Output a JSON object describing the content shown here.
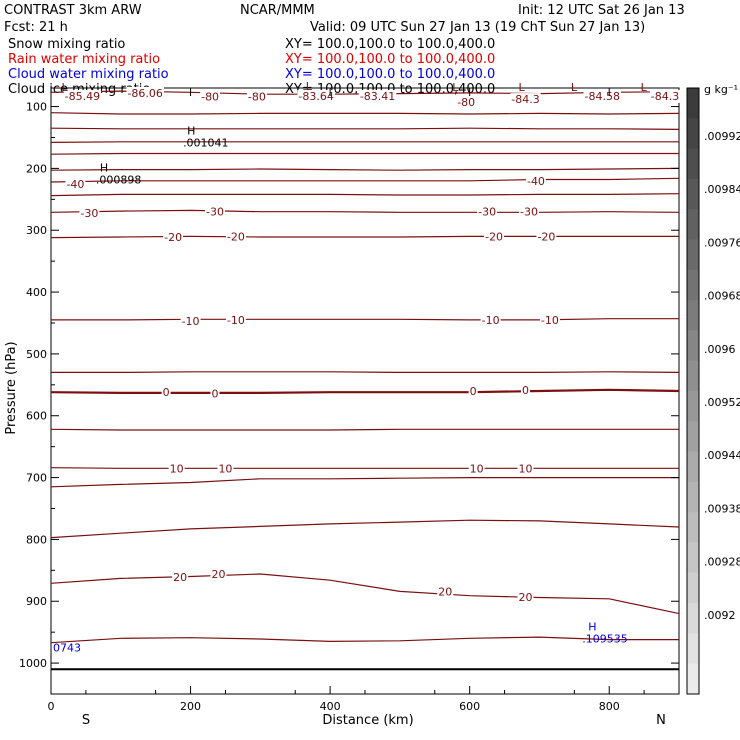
{
  "header": {
    "left1": "CONTRAST  3km ARW",
    "left2": "Fcst:    21 h",
    "center": "NCAR/MMM",
    "init": "Init: 12 UTC Sat 26 Jan 13",
    "valid": "Valid: 09 UTC Sun 27 Jan 13 (19 ChT Sun 27 Jan 13)"
  },
  "fields": [
    {
      "name": "Snow mixing ratio",
      "xy": "XY= 100.0,100.0 to 100.0,400.0",
      "color": "#000000"
    },
    {
      "name": "Rain water mixing ratio",
      "xy": "XY= 100.0,100.0 to 100.0,400.0",
      "color": "#e00000"
    },
    {
      "name": "Cloud water mixing ratio",
      "xy": "XY= 100.0,100.0 to 100.0,400.0",
      "color": "#0000dd"
    },
    {
      "name": "Cloud ice mixing ratio",
      "xy": "XY= 100.0,100.0 to 100.0,400.0",
      "color": "#000000"
    }
  ],
  "chart_data": {
    "type": "contour",
    "xlabel": "Distance (km)",
    "ylabel": "Pressure (hPa)",
    "xlim": [
      0,
      900
    ],
    "ylim": [
      1050,
      70
    ],
    "x_ticks": [
      0,
      200,
      400,
      600,
      800
    ],
    "y_ticks": [
      100,
      200,
      300,
      400,
      500,
      600,
      700,
      800,
      900,
      1000
    ],
    "x_end_labels": {
      "left": "S",
      "right": "N"
    },
    "contour_color": "#7a1010",
    "contours": [
      {
        "level": "-80",
        "p": [
          77,
          75,
          77,
          80,
          80,
          79,
          78,
          79,
          77,
          76
        ]
      },
      {
        "level": "",
        "p": [
          110,
          112,
          112,
          111,
          111,
          111,
          112,
          111,
          112,
          111
        ]
      },
      {
        "level": "",
        "p": [
          135,
          136,
          136,
          136,
          136,
          136,
          135,
          136,
          136,
          137
        ]
      },
      {
        "level": "",
        "p": [
          158,
          157,
          157,
          157,
          157,
          157,
          157,
          157,
          157,
          157
        ]
      },
      {
        "level": "",
        "p": [
          177,
          176,
          176,
          176,
          176,
          176,
          176,
          176,
          176,
          176
        ]
      },
      {
        "level": "",
        "p": [
          203,
          202,
          202,
          201,
          202,
          203,
          202,
          202,
          201,
          200
        ]
      },
      {
        "level": "-40",
        "p": [
          222,
          220,
          220,
          220,
          220,
          220,
          220,
          218,
          218,
          216
        ]
      },
      {
        "level": "",
        "p": [
          244,
          242,
          242,
          242,
          242,
          243,
          243,
          242,
          242,
          241
        ]
      },
      {
        "level": "-30",
        "p": [
          271,
          269,
          268,
          270,
          270,
          271,
          271,
          271,
          270,
          271
        ]
      },
      {
        "level": "-20",
        "p": [
          312,
          311,
          310,
          311,
          311,
          311,
          310,
          310,
          310,
          310
        ]
      },
      {
        "level": "-10",
        "p": [
          445,
          445,
          444,
          444,
          444,
          444,
          445,
          445,
          443,
          443
        ]
      },
      {
        "level": "",
        "p": [
          530,
          530,
          529,
          529,
          529,
          530,
          530,
          530,
          529,
          530
        ]
      },
      {
        "level": "0",
        "p": [
          562,
          563,
          563,
          563,
          562,
          562,
          562,
          560,
          558,
          560
        ]
      },
      {
        "level": "",
        "p": [
          622,
          623,
          623,
          623,
          623,
          622,
          622,
          622,
          622,
          622
        ]
      },
      {
        "level": "10",
        "p": [
          684,
          685,
          685,
          685,
          685,
          685,
          685,
          685,
          685,
          685
        ]
      },
      {
        "level": "",
        "p": [
          715,
          711,
          708,
          702,
          702,
          701,
          700,
          700,
          700,
          700
        ]
      },
      {
        "level": "",
        "p": [
          797,
          790,
          783,
          779,
          775,
          772,
          769,
          770,
          775,
          780
        ]
      },
      {
        "level": "20",
        "p": [
          871,
          863,
          860,
          856,
          866,
          884,
          891,
          894,
          896,
          920
        ]
      },
      {
        "level": "",
        "p": [
          967,
          960,
          959,
          961,
          965,
          964,
          960,
          958,
          962,
          962
        ]
      }
    ],
    "x_samples": [
      0,
      100,
      200,
      300,
      400,
      500,
      600,
      700,
      800,
      900
    ],
    "line_labels": [
      {
        "text": "-85.49",
        "x": 45,
        "p": 83
      },
      {
        "text": "-86.06",
        "x": 135,
        "p": 78
      },
      {
        "text": "-80",
        "x": 228,
        "p": 84
      },
      {
        "text": "-80",
        "x": 295,
        "p": 84
      },
      {
        "text": "-83.64",
        "x": 380,
        "p": 83
      },
      {
        "text": "-83.41",
        "x": 468,
        "p": 83
      },
      {
        "text": "-80",
        "x": 595,
        "p": 93
      },
      {
        "text": "-84.3",
        "x": 680,
        "p": 88
      },
      {
        "text": "-84.58",
        "x": 790,
        "p": 83
      },
      {
        "text": "-84.3",
        "x": 880,
        "p": 83
      },
      {
        "text": "-40",
        "x": 35,
        "p": 225
      },
      {
        "text": "-40",
        "x": 695,
        "p": 220
      },
      {
        "text": "-30",
        "x": 55,
        "p": 272
      },
      {
        "text": "-30",
        "x": 235,
        "p": 270
      },
      {
        "text": "-30",
        "x": 625,
        "p": 270
      },
      {
        "text": "-30",
        "x": 685,
        "p": 270
      },
      {
        "text": "-20",
        "x": 175,
        "p": 311
      },
      {
        "text": "-20",
        "x": 265,
        "p": 310
      },
      {
        "text": "-20",
        "x": 635,
        "p": 310
      },
      {
        "text": "-20",
        "x": 710,
        "p": 310
      },
      {
        "text": "-10",
        "x": 200,
        "p": 447
      },
      {
        "text": "-10",
        "x": 265,
        "p": 445
      },
      {
        "text": "-10",
        "x": 630,
        "p": 445
      },
      {
        "text": "-10",
        "x": 715,
        "p": 445
      },
      {
        "text": "0",
        "x": 165,
        "p": 562
      },
      {
        "text": "0",
        "x": 235,
        "p": 564
      },
      {
        "text": "0",
        "x": 605,
        "p": 560
      },
      {
        "text": "0",
        "x": 680,
        "p": 558
      },
      {
        "text": "10",
        "x": 180,
        "p": 685
      },
      {
        "text": "10",
        "x": 250,
        "p": 685
      },
      {
        "text": "10",
        "x": 610,
        "p": 685
      },
      {
        "text": "10",
        "x": 680,
        "p": 685
      },
      {
        "text": "20",
        "x": 185,
        "p": 861
      },
      {
        "text": "20",
        "x": 240,
        "p": 856
      },
      {
        "text": "20",
        "x": 565,
        "p": 884
      },
      {
        "text": "20",
        "x": 680,
        "p": 893
      }
    ],
    "extrema": [
      {
        "mark": "L",
        "text": "",
        "x": 15,
        "p": 75
      },
      {
        "mark": "L",
        "text": "",
        "x": 365,
        "p": 73
      },
      {
        "mark": "L",
        "text": "",
        "x": 575,
        "p": 75
      },
      {
        "mark": "L",
        "text": "",
        "x": 670,
        "p": 75
      },
      {
        "mark": "L",
        "text": "",
        "x": 745,
        "p": 75
      },
      {
        "mark": "L",
        "text": "",
        "x": 845,
        "p": 75
      },
      {
        "mark": "H",
        "text": ".001041",
        "x": 195,
        "p": 145
      },
      {
        "mark": "H",
        "text": ".000898",
        "x": 70,
        "p": 205
      }
    ],
    "cloud_water": {
      "color": "#0000dd",
      "labels": [
        {
          "mark": "H",
          "text": ".109535",
          "x": 770,
          "p": 960
        },
        {
          "mark": "",
          "text": "0743",
          "x": 2,
          "p": 975
        }
      ]
    },
    "colorbar": {
      "units": "g kg⁻¹",
      "ticks": [
        ".00992",
        ".00984",
        ".00976",
        ".00968",
        ".0096",
        ".00952",
        ".00944",
        ".00938",
        ".00928",
        ".0092"
      ]
    }
  }
}
